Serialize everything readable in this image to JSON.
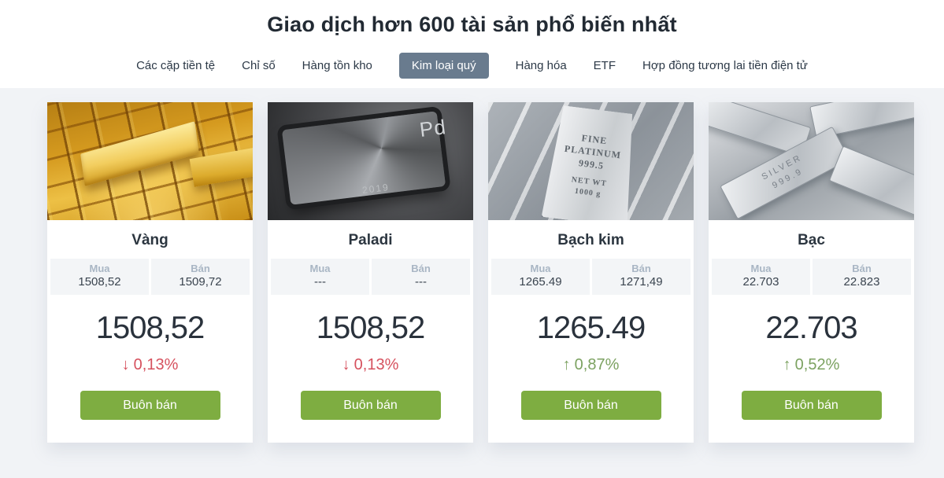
{
  "header": {
    "title": "Giao dịch hơn 600 tài sản phổ biến nhất"
  },
  "tabs": [
    {
      "label": "Các cặp tiền tệ",
      "active": false
    },
    {
      "label": "Chỉ số",
      "active": false
    },
    {
      "label": "Hàng tồn kho",
      "active": false
    },
    {
      "label": "Kim loại quý",
      "active": true
    },
    {
      "label": "Hàng hóa",
      "active": false
    },
    {
      "label": "ETF",
      "active": false
    },
    {
      "label": "Hợp đồng tương lai tiền điện tử",
      "active": false
    }
  ],
  "labels": {
    "buy": "Mua",
    "sell": "Bán",
    "trade_button": "Buôn bán"
  },
  "cards": [
    {
      "name": "Vàng",
      "image": "gold-bars-photo",
      "buy": "1508,52",
      "sell": "1509,72",
      "price": "1508,52",
      "arrow": "↓",
      "change": "0,13%",
      "direction": "down"
    },
    {
      "name": "Paladi",
      "image": "palladium-bar-photo",
      "image_text": "Pd",
      "image_year": "2019",
      "buy": "---",
      "sell": "---",
      "price": "1508,52",
      "arrow": "↓",
      "change": "0,13%",
      "direction": "down"
    },
    {
      "name": "Bạch kim",
      "image": "platinum-bars-photo",
      "image_text_primary": "FINE\nPLATINUM\n999.5",
      "image_text_secondary": "NET WT\n1000 g",
      "buy": "1265.49",
      "sell": "1271,49",
      "price": "1265.49",
      "arrow": "↑",
      "change": "0,87%",
      "direction": "up"
    },
    {
      "name": "Bạc",
      "image": "silver-bars-photo",
      "image_text": "SILVER\n999.9",
      "buy": "22.703",
      "sell": "22.823",
      "price": "22.703",
      "arrow": "↑",
      "change": "0,52%",
      "direction": "up"
    }
  ],
  "colors": {
    "up": "#7ca261",
    "down": "#d6515e",
    "trade_button": "#7ead41",
    "active_tab_bg": "#697b8e",
    "page_bg": "#f1f3f6"
  }
}
